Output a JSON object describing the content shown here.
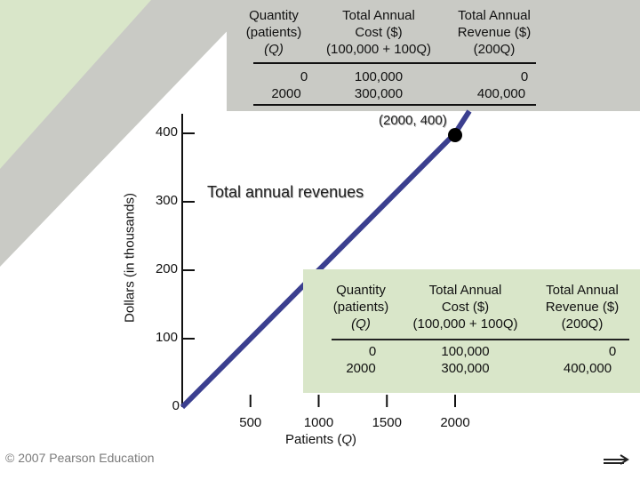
{
  "table": {
    "headers": [
      "Quantity (patients) (Q)",
      "Total Annual Cost ($) (100,000 + 100Q)",
      "Total Annual Revenue ($) (200Q)"
    ],
    "header_lines": [
      [
        "Quantity",
        "(patients)",
        "(Q)"
      ],
      [
        "Total Annual",
        "Cost ($)",
        "(100,000 + 100Q)"
      ],
      [
        "Total Annual",
        "Revenue ($)",
        "(200Q)"
      ]
    ],
    "rows": [
      [
        "0",
        "100,000",
        "0"
      ],
      [
        "2000",
        "300,000",
        "400,000"
      ]
    ]
  },
  "chart_data": {
    "type": "line",
    "xlabel": "Patients (Q)",
    "ylabel": "Dollars (in thousands)",
    "xlim": [
      0,
      2000
    ],
    "ylim": [
      0,
      400
    ],
    "x_ticks": [
      "500",
      "1000",
      "1500",
      "2000"
    ],
    "y_ticks": [
      "0",
      "100",
      "200",
      "300",
      "400"
    ],
    "series": [
      {
        "name": "Total annual revenues",
        "x": [
          0,
          2000
        ],
        "y": [
          0,
          400
        ],
        "color": "#3b3f8f"
      }
    ],
    "annotations": [
      {
        "text": "Total annual revenues"
      },
      {
        "text": "(2000, 400)",
        "x": 2000,
        "y": 400
      }
    ]
  },
  "footer": {
    "copyright": "© 2007 Pearson Education",
    "next_icon": "arrow-right-icon"
  },
  "colors": {
    "panel_gray": "#c9cac5",
    "panel_green": "#d9e6c9",
    "line": "#3b3f8f"
  }
}
